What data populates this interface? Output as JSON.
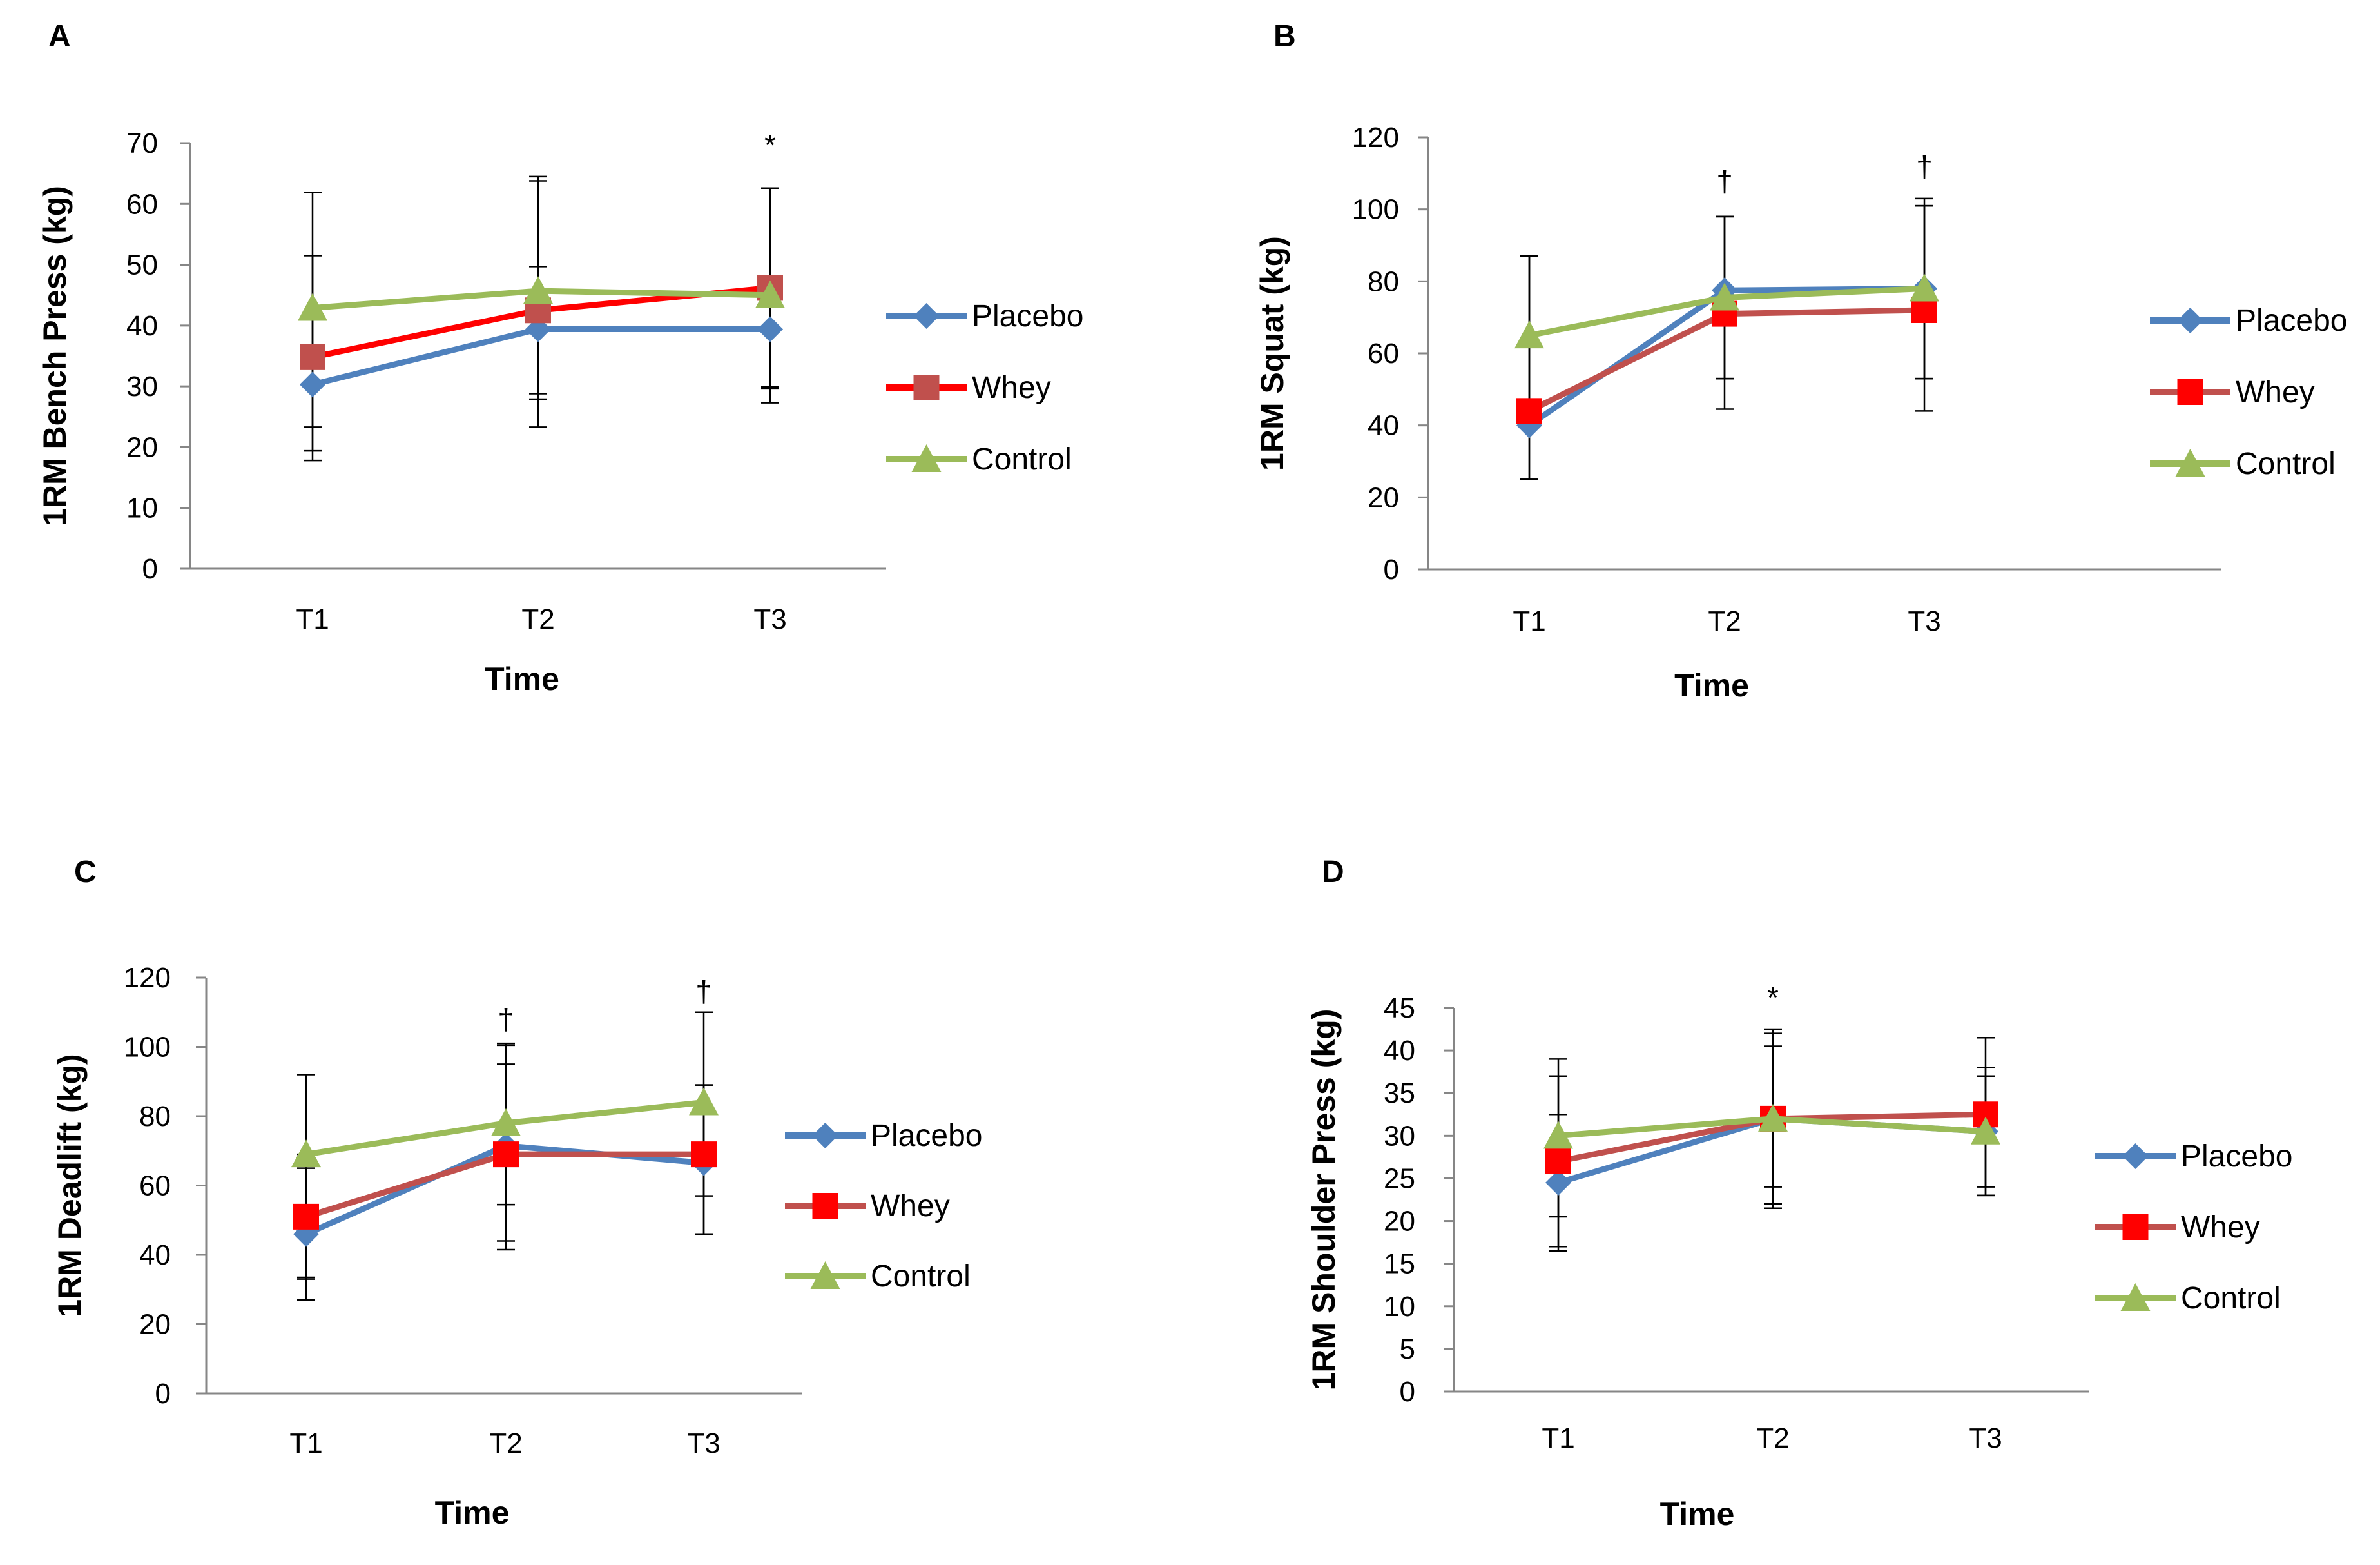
{
  "figure": {
    "series_colors": {
      "Placebo": "#4f81bd",
      "Whey_line_A": "#ff0000",
      "Whey_line": "#c0504d",
      "Whey_marker_A": "#c0504d",
      "Whey_marker": "#ff0000",
      "Control": "#9bbb59"
    },
    "series_markers": {
      "Placebo": "diamond",
      "Whey": "square",
      "Control": "triangle"
    }
  },
  "chart_data": [
    {
      "panel": "A",
      "type": "line",
      "title": "",
      "xlabel": "Time",
      "ylabel": "1RM Bench Press (kg)",
      "categories": [
        "T1",
        "T2",
        "T3"
      ],
      "ylim": [
        0,
        70
      ],
      "yticks": [
        0,
        10,
        20,
        30,
        40,
        50,
        60,
        70
      ],
      "grid": false,
      "legend": "right",
      "legend_entries": [
        "Placebo",
        "Whey",
        "Control"
      ],
      "series": [
        {
          "name": "Placebo",
          "values": [
            30.3,
            39.4,
            39.4
          ],
          "err_low": [
            17.8,
            23.3,
            27.3
          ],
          "err_high": [
            51.5,
            64.5,
            62.6
          ]
        },
        {
          "name": "Whey",
          "values": [
            34.8,
            42.5,
            46.2
          ],
          "err_low": [
            19.4,
            27.9,
            29.9
          ],
          "err_high": [
            51.5,
            63.8,
            62.6
          ]
        },
        {
          "name": "Control",
          "values": [
            42.9,
            45.7,
            45.0
          ],
          "err_low": [
            23.3,
            28.8,
            29.6
          ],
          "err_high": [
            61.9,
            49.7,
            62.6
          ]
        }
      ],
      "annotations": [
        {
          "text": "*",
          "category": "T3",
          "y": 68
        }
      ]
    },
    {
      "panel": "B",
      "type": "line",
      "title": "",
      "xlabel": "Time",
      "ylabel": "1RM Squat (kg)",
      "categories": [
        "T1",
        "T2",
        "T3"
      ],
      "ylim": [
        0,
        120
      ],
      "yticks": [
        0,
        20,
        40,
        60,
        80,
        100,
        120
      ],
      "grid": false,
      "legend": "right",
      "legend_entries": [
        "Placebo",
        "Whey",
        "Control"
      ],
      "series": [
        {
          "name": "Placebo",
          "values": [
            40.0,
            77.5,
            78.0
          ],
          "err_low": [
            25.0,
            53.0,
            53.0
          ],
          "err_high": [
            87.0,
            98.0,
            101.0
          ]
        },
        {
          "name": "Whey",
          "values": [
            44.0,
            71.0,
            72.0
          ],
          "err_low": [
            25.0,
            44.5,
            44.0
          ],
          "err_high": [
            87.0,
            98.0,
            103.0
          ]
        },
        {
          "name": "Control",
          "values": [
            65.0,
            75.5,
            78.0
          ],
          "err_low": [
            44.0,
            53.0,
            53.0
          ],
          "err_high": [
            87.0,
            98.0,
            101.0
          ]
        }
      ],
      "annotations": [
        {
          "text": "†",
          "category": "T2",
          "y": 105
        },
        {
          "text": "†",
          "category": "T3",
          "y": 109
        }
      ]
    },
    {
      "panel": "C",
      "type": "line",
      "title": "",
      "xlabel": "Time",
      "ylabel": "1RM Deadlift (kg)",
      "categories": [
        "T1",
        "T2",
        "T3"
      ],
      "ylim": [
        0,
        120
      ],
      "yticks": [
        0,
        20,
        40,
        60,
        80,
        100,
        120
      ],
      "grid": false,
      "legend": "right",
      "legend_entries": [
        "Placebo",
        "Whey",
        "Control"
      ],
      "series": [
        {
          "name": "Placebo",
          "values": [
            46.0,
            71.5,
            66.5
          ],
          "err_low": [
            27.0,
            41.5,
            46.0
          ],
          "err_high": [
            65.0,
            100.5,
            89.0
          ]
        },
        {
          "name": "Whey",
          "values": [
            51.0,
            69.0,
            69.0
          ],
          "err_low": [
            33.5,
            44.0,
            46.0
          ],
          "err_high": [
            69.0,
            95.0,
            89.0
          ]
        },
        {
          "name": "Control",
          "values": [
            69.0,
            78.0,
            84.0
          ],
          "err_low": [
            33.0,
            54.5,
            57.0
          ],
          "err_high": [
            92.0,
            101.0,
            110.0
          ]
        }
      ],
      "annotations": [
        {
          "text": "†",
          "category": "T2",
          "y": 105
        },
        {
          "text": "†",
          "category": "T3",
          "y": 113
        }
      ]
    },
    {
      "panel": "D",
      "type": "line",
      "title": "",
      "xlabel": "Time",
      "ylabel": "1RM Shoulder Press (kg)",
      "categories": [
        "T1",
        "T2",
        "T3"
      ],
      "ylim": [
        0,
        45
      ],
      "yticks": [
        0,
        5,
        10,
        15,
        20,
        25,
        30,
        35,
        40,
        45
      ],
      "grid": false,
      "legend": "right",
      "legend_entries": [
        "Placebo",
        "Whey",
        "Control"
      ],
      "series": [
        {
          "name": "Placebo",
          "values": [
            24.5,
            32.0,
            30.5
          ],
          "err_low": [
            16.5,
            22.0,
            23.0
          ],
          "err_high": [
            32.5,
            42.0,
            38.0
          ]
        },
        {
          "name": "Whey",
          "values": [
            27.0,
            32.0,
            32.5
          ],
          "err_low": [
            17.0,
            21.5,
            23.0
          ],
          "err_high": [
            37.0,
            42.5,
            41.5
          ]
        },
        {
          "name": "Control",
          "values": [
            30.0,
            32.0,
            30.5
          ],
          "err_low": [
            20.5,
            24.0,
            24.0
          ],
          "err_high": [
            39.0,
            40.5,
            37.0
          ]
        }
      ],
      "annotations": [
        {
          "text": "*",
          "category": "T2",
          "y": 45
        }
      ]
    }
  ]
}
